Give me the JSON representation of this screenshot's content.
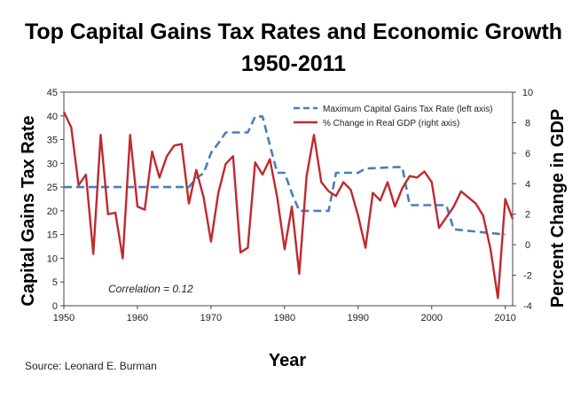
{
  "chart_data": {
    "type": "line",
    "title_line1": "Top Capital Gains Tax Rates and Economic Growth",
    "title_line2": "1950-2011",
    "xlabel": "Year",
    "ylabel_left": "Capital Gains Tax Rate",
    "ylabel_right": "Percent  Change in GDP",
    "xlim": [
      1950,
      2011
    ],
    "ylim_left": [
      0,
      45
    ],
    "ylim_right": [
      -4,
      10
    ],
    "x_ticks": [
      1950,
      1960,
      1970,
      1980,
      1990,
      2000,
      2010
    ],
    "y_ticks_left": [
      0,
      5,
      10,
      15,
      20,
      25,
      30,
      35,
      40,
      45
    ],
    "y_ticks_right": [
      -4,
      -2,
      0,
      2,
      4,
      6,
      8,
      10
    ],
    "annotation": "Correlation = 0.12",
    "legend_position": "top-right",
    "series": [
      {
        "name": "Maximum Capital Gains Tax Rate (left axis)",
        "axis": "left",
        "style": "dashed",
        "color": "#4a7ebb",
        "points": [
          [
            1950,
            25
          ],
          [
            1967,
            25
          ],
          [
            1968,
            26.9
          ],
          [
            1969,
            27.9
          ],
          [
            1970,
            32.2
          ],
          [
            1971,
            34.25
          ],
          [
            1972,
            36.5
          ],
          [
            1975,
            36.5
          ],
          [
            1976,
            39.875
          ],
          [
            1977,
            39.875
          ],
          [
            1978,
            33.85
          ],
          [
            1979,
            28
          ],
          [
            1980,
            28
          ],
          [
            1981,
            23.7
          ],
          [
            1982,
            20
          ],
          [
            1986,
            20
          ],
          [
            1987,
            28
          ],
          [
            1990,
            28
          ],
          [
            1991,
            28.9
          ],
          [
            1995,
            29.2
          ],
          [
            1996,
            29.2
          ],
          [
            1997,
            21.2
          ],
          [
            2002,
            21.2
          ],
          [
            2003,
            16.1
          ],
          [
            2010,
            15
          ]
        ]
      },
      {
        "name": "% Change in Real GDP (right axis)",
        "axis": "right",
        "color": "#c0292e",
        "points": [
          [
            1950,
            8.7
          ],
          [
            1951,
            7.7
          ],
          [
            1952,
            3.9
          ],
          [
            1953,
            4.6
          ],
          [
            1954,
            -0.6
          ],
          [
            1955,
            7.2
          ],
          [
            1956,
            2.0
          ],
          [
            1957,
            2.1
          ],
          [
            1958,
            -0.9
          ],
          [
            1959,
            7.2
          ],
          [
            1960,
            2.5
          ],
          [
            1961,
            2.3
          ],
          [
            1962,
            6.1
          ],
          [
            1963,
            4.4
          ],
          [
            1964,
            5.8
          ],
          [
            1965,
            6.5
          ],
          [
            1966,
            6.6
          ],
          [
            1967,
            2.7
          ],
          [
            1968,
            4.9
          ],
          [
            1969,
            3.1
          ],
          [
            1970,
            0.2
          ],
          [
            1971,
            3.4
          ],
          [
            1972,
            5.3
          ],
          [
            1973,
            5.8
          ],
          [
            1974,
            -0.5
          ],
          [
            1975,
            -0.2
          ],
          [
            1976,
            5.4
          ],
          [
            1977,
            4.6
          ],
          [
            1978,
            5.6
          ],
          [
            1979,
            3.1
          ],
          [
            1980,
            -0.3
          ],
          [
            1981,
            2.5
          ],
          [
            1982,
            -1.9
          ],
          [
            1983,
            4.5
          ],
          [
            1984,
            7.2
          ],
          [
            1985,
            4.1
          ],
          [
            1986,
            3.5
          ],
          [
            1987,
            3.2
          ],
          [
            1988,
            4.1
          ],
          [
            1989,
            3.6
          ],
          [
            1990,
            1.9
          ],
          [
            1991,
            -0.2
          ],
          [
            1992,
            3.4
          ],
          [
            1993,
            2.9
          ],
          [
            1994,
            4.1
          ],
          [
            1995,
            2.5
          ],
          [
            1996,
            3.7
          ],
          [
            1997,
            4.5
          ],
          [
            1998,
            4.4
          ],
          [
            1999,
            4.8
          ],
          [
            2000,
            4.1
          ],
          [
            2001,
            1.1
          ],
          [
            2002,
            1.8
          ],
          [
            2003,
            2.5
          ],
          [
            2004,
            3.5
          ],
          [
            2005,
            3.1
          ],
          [
            2006,
            2.7
          ],
          [
            2007,
            1.9
          ],
          [
            2008,
            -0.3
          ],
          [
            2009,
            -3.5
          ],
          [
            2010,
            3.0
          ],
          [
            2011,
            1.7
          ]
        ]
      }
    ]
  },
  "source": "Source: Leonard E. Burman"
}
